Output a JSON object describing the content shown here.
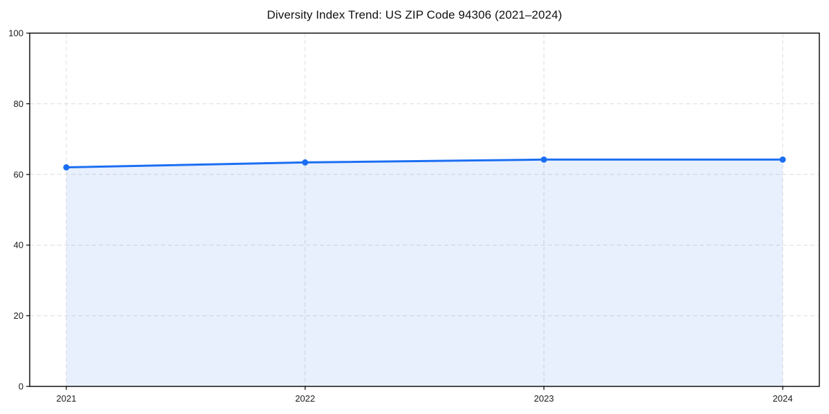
{
  "page": {
    "title": "Diversity Index Trend: US ZIP Code 94306 (2021–2024)"
  },
  "chart_data": {
    "type": "area",
    "title": "Diversity Index Trend: US ZIP Code 94306 (2021–2024)",
    "categories": [
      "2021",
      "2022",
      "2023",
      "2024"
    ],
    "series": [
      {
        "name": "Diversity Index",
        "values": [
          62.0,
          63.4,
          64.2,
          64.2
        ]
      }
    ],
    "ylim": [
      0,
      100
    ],
    "yticks": [
      0,
      20,
      40,
      60,
      80,
      100
    ],
    "grid": true,
    "grid_style": "dashed",
    "legend": "none",
    "colors": {
      "line": "#1b6ef3",
      "marker": "#1b6ef3",
      "fill": "rgba(27,110,243,0.10)",
      "grid": "#dcdcdc",
      "axis": "#000000",
      "text": "#1a1a1a",
      "background": "#ffffff"
    }
  }
}
